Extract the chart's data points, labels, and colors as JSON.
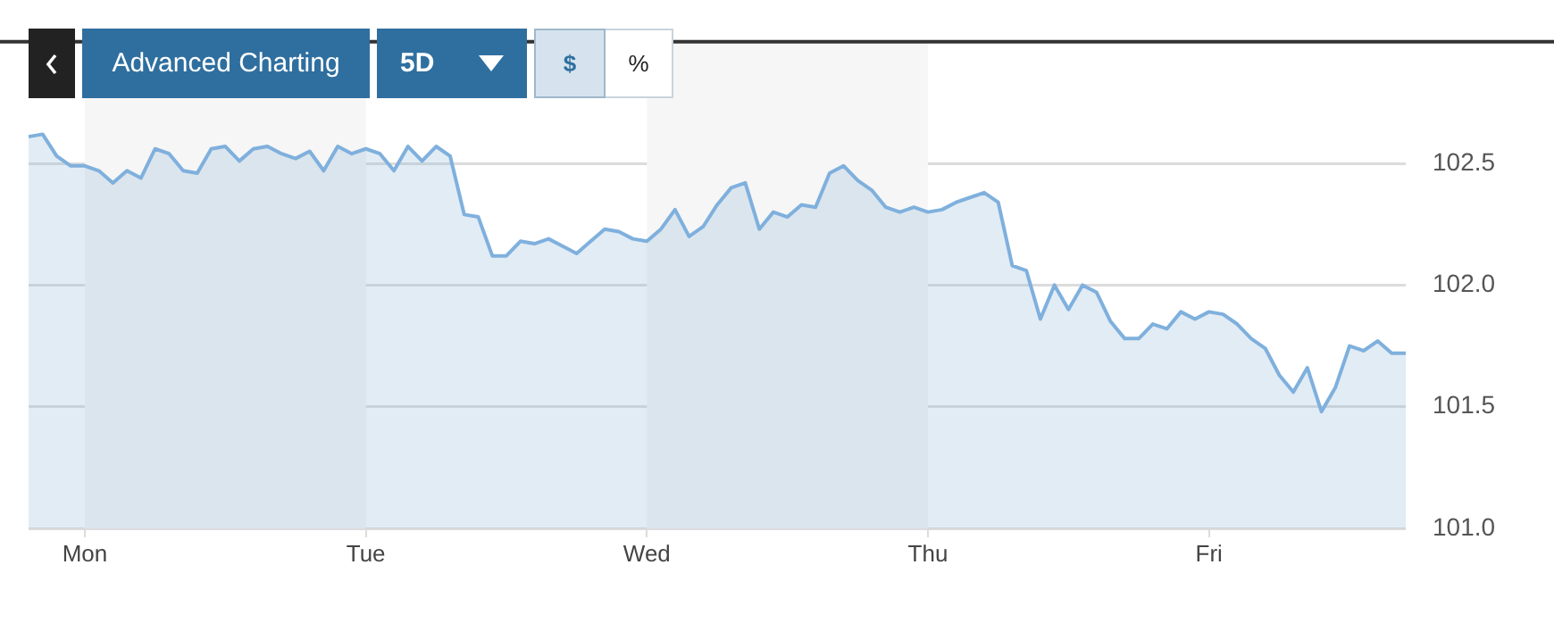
{
  "chart_data": {
    "type": "area",
    "categories": [
      null,
      null,
      null,
      null,
      "Mon",
      null,
      null,
      null,
      null,
      null,
      null,
      null,
      null,
      null,
      null,
      null,
      null,
      null,
      null,
      null,
      null,
      null,
      null,
      null,
      "Tue",
      null,
      null,
      null,
      null,
      null,
      null,
      null,
      null,
      null,
      null,
      null,
      null,
      null,
      null,
      null,
      null,
      null,
      null,
      null,
      "Wed",
      null,
      null,
      null,
      null,
      null,
      null,
      null,
      null,
      null,
      null,
      null,
      null,
      null,
      null,
      null,
      null,
      null,
      null,
      null,
      "Thu",
      null,
      null,
      null,
      null,
      null,
      null,
      null,
      null,
      null,
      null,
      null,
      null,
      null,
      null,
      null,
      null,
      null,
      null,
      null,
      "Fri",
      null,
      null,
      null,
      null,
      null,
      null,
      null,
      null,
      null,
      null,
      null,
      null,
      null,
      null
    ],
    "series": [
      {
        "color": "#7fb0dd",
        "values": [
          102.61,
          102.62,
          102.53,
          102.49,
          102.49,
          102.47,
          102.42,
          102.47,
          102.44,
          102.56,
          102.54,
          102.47,
          102.46,
          102.56,
          102.57,
          102.51,
          102.56,
          102.57,
          102.54,
          102.52,
          102.55,
          102.47,
          102.57,
          102.54,
          102.56,
          102.54,
          102.47,
          102.57,
          102.51,
          102.57,
          102.53,
          102.29,
          102.28,
          102.12,
          102.12,
          102.18,
          102.17,
          102.19,
          102.16,
          102.13,
          102.18,
          102.23,
          102.22,
          102.19,
          102.18,
          102.23,
          102.31,
          102.2,
          102.24,
          102.33,
          102.4,
          102.42,
          102.23,
          102.3,
          102.28,
          102.33,
          102.32,
          102.46,
          102.49,
          102.43,
          102.39,
          102.32,
          102.3,
          102.32,
          102.3,
          102.31,
          102.34,
          102.36,
          102.38,
          102.34,
          102.08,
          102.06,
          101.86,
          102.0,
          101.9,
          102.0,
          101.97,
          101.85,
          101.78,
          101.78,
          101.84,
          101.82,
          101.89,
          101.86,
          101.89,
          101.88,
          101.84,
          101.78,
          101.74,
          101.63,
          101.56,
          101.66,
          101.48,
          101.58,
          101.75,
          101.73,
          101.77,
          101.72,
          101.72
        ]
      }
    ],
    "ylim": [
      101,
      103
    ],
    "yticks": [
      {
        "value": 101,
        "label": "101.0"
      },
      {
        "value": 101.5,
        "label": "101.5"
      },
      {
        "value": 102,
        "label": "102.0"
      },
      {
        "value": 102.5,
        "label": "102.5"
      }
    ],
    "bands": [
      {
        "axis": "x",
        "from": "Mon",
        "to": "Tue",
        "color": "#f6f6f6"
      },
      {
        "axis": "x",
        "from": "Wed",
        "to": "Thu",
        "color": "#f6f6f6"
      }
    ],
    "grid": "y",
    "legend": false,
    "marker": "none",
    "line_style": "solid",
    "annotations": [
      "Advanced Charting",
      "5D",
      "$",
      "%"
    ]
  }
}
